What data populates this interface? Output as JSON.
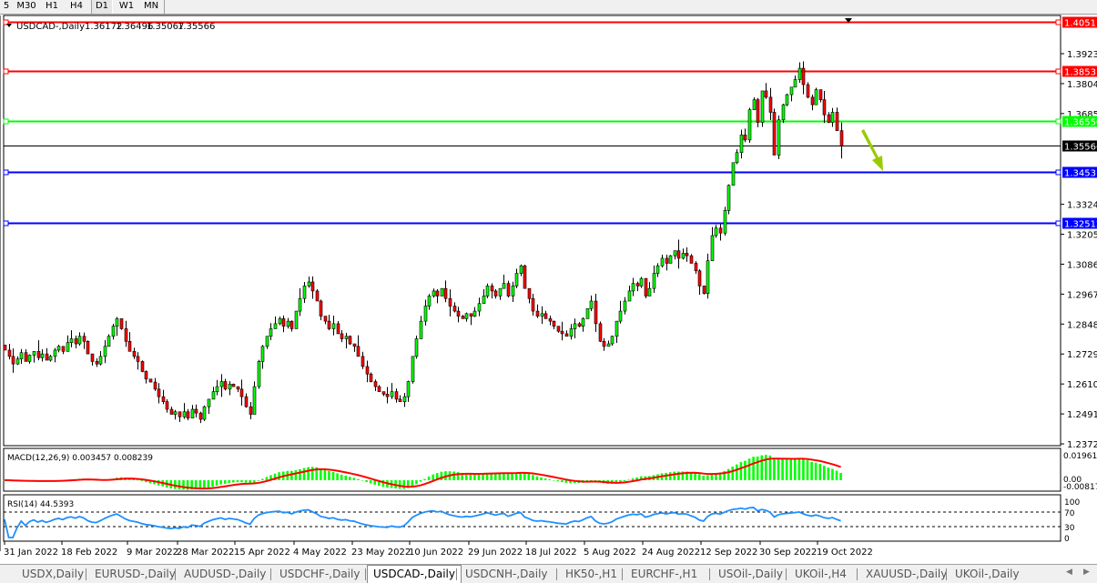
{
  "timeframes": [
    {
      "label": "5",
      "active": false
    },
    {
      "label": "M30",
      "active": false
    },
    {
      "label": "H1",
      "active": false
    },
    {
      "label": "H4",
      "active": false
    },
    {
      "label": "D1",
      "active": true
    },
    {
      "label": "W1",
      "active": false
    },
    {
      "label": "MN",
      "active": false
    }
  ],
  "chart_header": {
    "symbol": "USDCAD-,Daily",
    "open": "1.36172",
    "high": "1.36496",
    "low": "1.35067",
    "close": "1.35566"
  },
  "price_axis": [
    "1.39230",
    "1.38040",
    "1.36850",
    "1.33245",
    "1.32055",
    "1.30865",
    "1.29675",
    "1.28485",
    "1.27295",
    "1.26105",
    "1.24915",
    "1.23725"
  ],
  "levels": [
    {
      "price": 1.40511,
      "label": "1.40511",
      "color": "#ff0000"
    },
    {
      "price": 1.38531,
      "label": "1.38531",
      "color": "#ff0000"
    },
    {
      "price": 1.3655,
      "label": "1.36550",
      "color": "#00ff00"
    },
    {
      "price": 1.35566,
      "label": "1.35566",
      "color": "#000000",
      "bid": true
    },
    {
      "price": 1.34531,
      "label": "1.34531",
      "color": "#0000ff"
    },
    {
      "price": 1.32512,
      "label": "1.32512",
      "color": "#0000ff"
    }
  ],
  "colors": {
    "bull": "#00ff00",
    "bear": "#ff0000",
    "macd_hist": "#00ff00",
    "macd_signal": "#ff0000",
    "rsi": "#1e90ff",
    "arrow": "#99cc00"
  },
  "macd": {
    "label": "MACD(12,26,9) 0.003457 0.008239",
    "axis_top": "0.019616",
    "axis_zero": "0.00",
    "axis_bottom": "-0.008171"
  },
  "rsi": {
    "label": "RSI(14) 44.5393",
    "levels": [
      "100",
      "70",
      "30",
      "0"
    ]
  },
  "date_axis": [
    "31 Jan 2022",
    "18 Feb 2022",
    "9 Mar 2022",
    "28 Mar 2022",
    "15 Apr 2022",
    "4 May 2022",
    "23 May 2022",
    "10 Jun 2022",
    "29 Jun 2022",
    "18 Jul 2022",
    "5 Aug 2022",
    "24 Aug 2022",
    "12 Sep 2022",
    "30 Sep 2022",
    "19 Oct 2022"
  ],
  "chart_data": {
    "type": "candlestick",
    "last_bar": {
      "open": 1.36172,
      "high": 1.36496,
      "low": 1.35067,
      "close": 1.35566
    },
    "closes": [
      1.2745,
      1.272,
      1.269,
      1.271,
      1.2735,
      1.27,
      1.2725,
      1.274,
      1.2715,
      1.273,
      1.2705,
      1.272,
      1.2745,
      1.276,
      1.274,
      1.2775,
      1.279,
      1.277,
      1.28,
      1.278,
      1.273,
      1.27,
      1.269,
      1.272,
      1.276,
      1.28,
      1.284,
      1.287,
      1.283,
      1.278,
      1.274,
      1.272,
      1.27,
      1.266,
      1.263,
      1.2618,
      1.259,
      1.256,
      1.254,
      1.251,
      1.249,
      1.25,
      1.248,
      1.25,
      1.2475,
      1.251,
      1.2495,
      1.247,
      1.252,
      1.255,
      1.258,
      1.26,
      1.262,
      1.259,
      1.261,
      1.26,
      1.259,
      1.256,
      1.252,
      1.249,
      1.26,
      1.27,
      1.276,
      1.28,
      1.283,
      1.285,
      1.287,
      1.284,
      1.286,
      1.283,
      1.29,
      1.295,
      1.3,
      1.3016,
      1.298,
      1.294,
      1.288,
      1.286,
      1.283,
      1.285,
      1.281,
      1.279,
      1.28,
      1.277,
      1.276,
      1.272,
      1.268,
      1.265,
      1.262,
      1.26,
      1.258,
      1.257,
      1.256,
      1.258,
      1.255,
      1.254,
      1.256,
      1.262,
      1.272,
      1.279,
      1.286,
      1.292,
      1.296,
      1.298,
      1.296,
      1.299,
      1.295,
      1.292,
      1.29,
      1.288,
      1.287,
      1.289,
      1.288,
      1.29,
      1.293,
      1.296,
      1.3,
      1.298,
      1.296,
      1.299,
      1.301,
      1.296,
      1.3,
      1.305,
      1.308,
      1.299,
      1.295,
      1.29,
      1.288,
      1.289,
      1.287,
      1.286,
      1.284,
      1.282,
      1.281,
      1.28,
      1.283,
      1.285,
      1.284,
      1.287,
      1.291,
      1.294,
      1.285,
      1.278,
      1.276,
      1.277,
      1.28,
      1.286,
      1.29,
      1.294,
      1.298,
      1.301,
      1.3,
      1.303,
      1.296,
      1.299,
      1.305,
      1.308,
      1.311,
      1.309,
      1.312,
      1.314,
      1.311,
      1.313,
      1.312,
      1.309,
      1.306,
      1.3,
      1.297,
      1.31,
      1.32,
      1.323,
      1.321,
      1.33,
      1.34,
      1.349,
      1.353,
      1.36,
      1.358,
      1.37,
      1.374,
      1.365,
      1.3775,
      1.375,
      1.369,
      1.352,
      1.366,
      1.372,
      1.376,
      1.379,
      1.382,
      1.3865,
      1.38,
      1.375,
      1.372,
      1.378,
      1.374,
      1.368,
      1.365,
      1.369,
      1.36172,
      1.35566
    ],
    "price_range": [
      1.23725,
      1.40511
    ]
  },
  "tabs": [
    {
      "label": "USDX,Daily",
      "active": false
    },
    {
      "label": "EURUSD-,Daily",
      "active": false
    },
    {
      "label": "AUDUSD-,Daily",
      "active": false
    },
    {
      "label": "USDCHF-,Daily",
      "active": false
    },
    {
      "label": "USDCAD-,Daily",
      "active": true
    },
    {
      "label": "USDCNH-,Daily",
      "active": false
    },
    {
      "label": "HK50-,H1",
      "active": false
    },
    {
      "label": "EURCHF-,H1",
      "active": false
    },
    {
      "label": "USOil-,Daily",
      "active": false
    },
    {
      "label": "UKOil-,H4",
      "active": false
    },
    {
      "label": "XAUUSD-,Daily",
      "active": false
    },
    {
      "label": "UKOil-,Daily",
      "active": false
    }
  ],
  "tab_arrows": {
    "left": "◀",
    "right": "▶"
  }
}
